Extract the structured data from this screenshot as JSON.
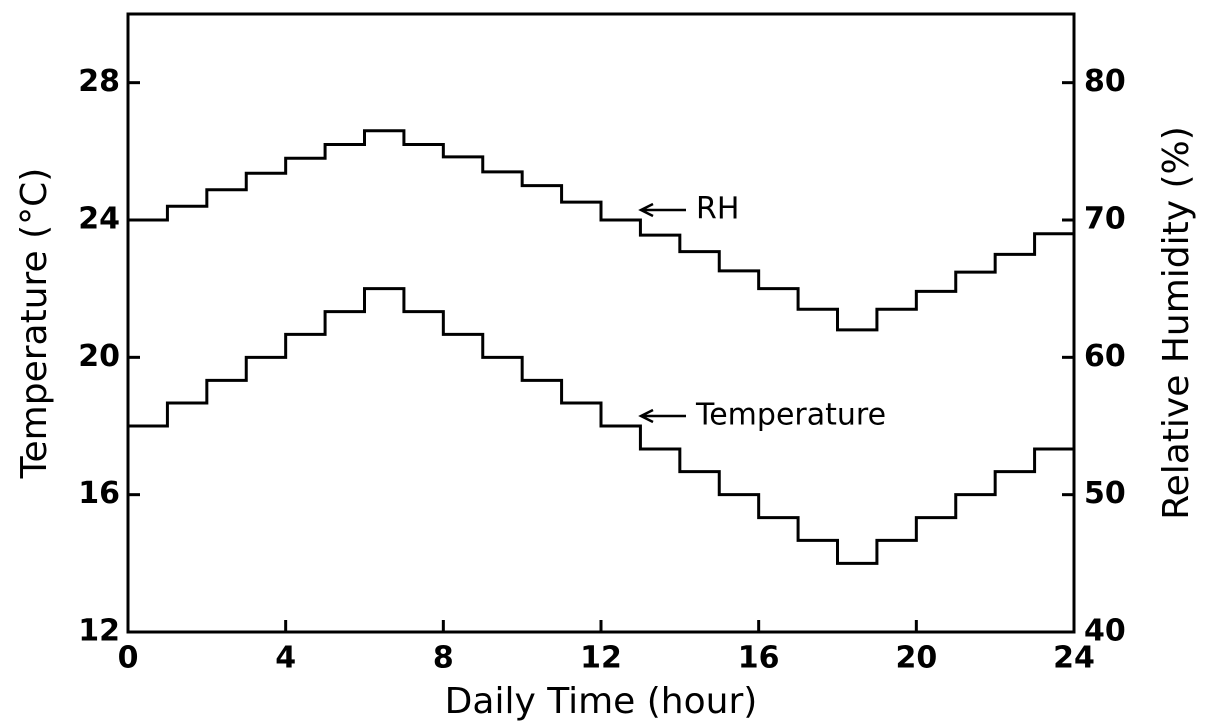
{
  "chart_data": {
    "type": "step",
    "xlabel": "Daily Time (hour)",
    "ylabel": "Temperature (°C)",
    "y2label": "Relative Humidity (%)",
    "x": [
      0,
      1,
      2,
      3,
      4,
      5,
      6,
      7,
      8,
      9,
      10,
      11,
      12,
      13,
      14,
      15,
      16,
      17,
      18,
      19,
      20,
      21,
      22,
      23,
      24
    ],
    "series": [
      {
        "name": "RH",
        "color": "#000000",
        "axis": "y2",
        "values": [
          70,
          71,
          72.2,
          73.4,
          74.5,
          75.5,
          76.5,
          75.5,
          74.6,
          73.5,
          72.5,
          71.3,
          70,
          68.9,
          67.7,
          66.3,
          65,
          63.5,
          62,
          63.5,
          64.8,
          66.2,
          67.5,
          69,
          70.3
        ]
      },
      {
        "name": "Temperature",
        "color": "#000000",
        "axis": "y",
        "values": [
          18,
          18.67,
          19.33,
          20,
          20.67,
          21.33,
          22,
          21.33,
          20.67,
          20,
          19.33,
          18.67,
          18,
          17.33,
          16.67,
          16,
          15.33,
          14.67,
          14,
          14.67,
          15.33,
          16,
          16.67,
          17.33,
          18
        ]
      }
    ],
    "xlim": [
      0,
      24
    ],
    "xticks": [
      0,
      4,
      8,
      12,
      16,
      20,
      24
    ],
    "ylim": [
      12,
      30
    ],
    "yticks": [
      12,
      16,
      20,
      24,
      28
    ],
    "y2lim": [
      40,
      85
    ],
    "y2ticks": [
      40,
      50,
      60,
      70,
      80
    ]
  }
}
